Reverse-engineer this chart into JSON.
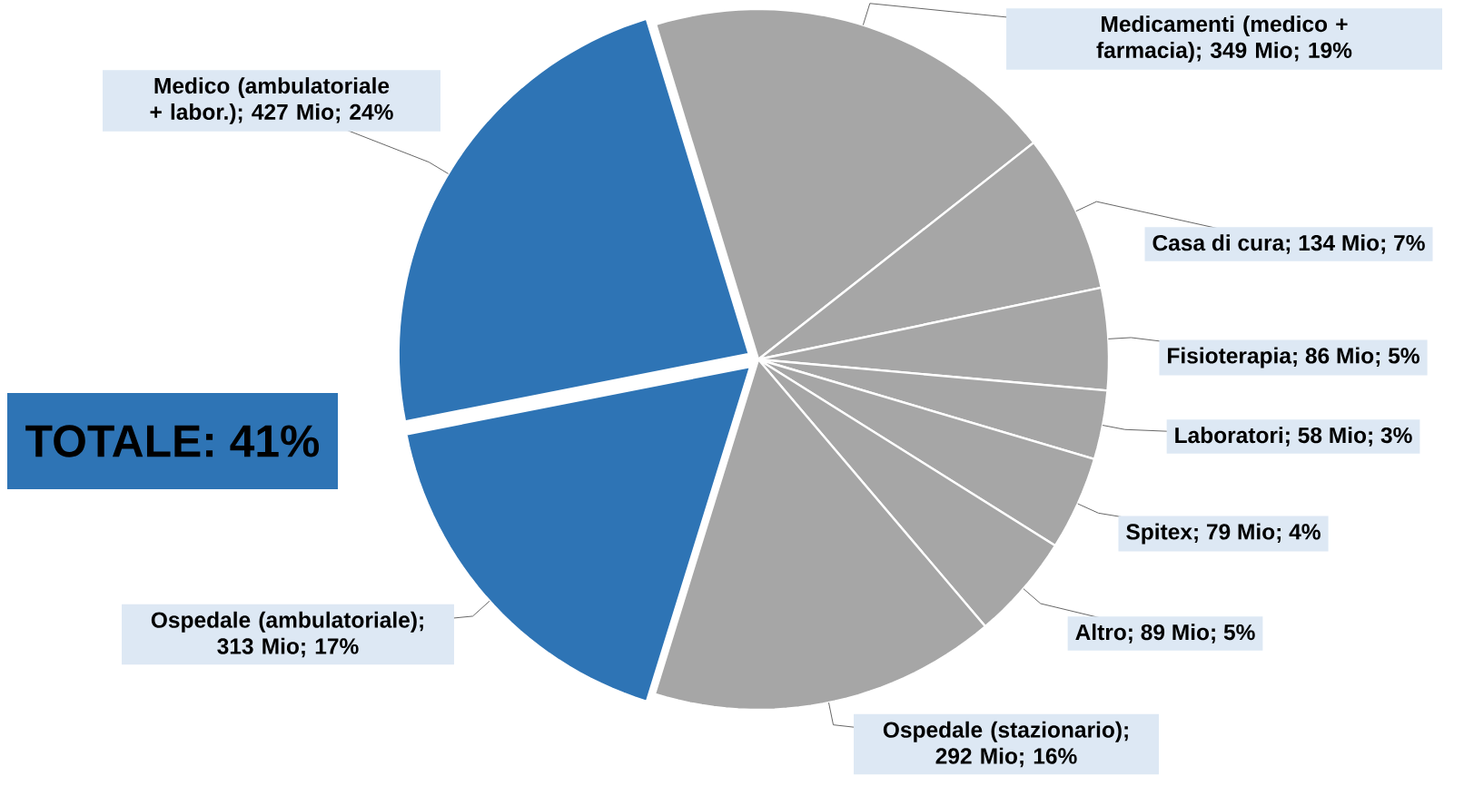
{
  "chart_data": {
    "type": "pie",
    "categories": [
      "Medicamenti (medico + farmacia)",
      "Casa di cura",
      "Fisioterapia",
      "Laboratori",
      "Spitex",
      "Altro",
      "Ospedale (stazionario)",
      "Ospedale (ambulatoriale)",
      "Medico (ambulatoriale + labor.)"
    ],
    "values": [
      349,
      134,
      86,
      58,
      79,
      89,
      292,
      313,
      427
    ],
    "colors": [
      "#a6a6a6",
      "#a6a6a6",
      "#a6a6a6",
      "#a6a6a6",
      "#a6a6a6",
      "#a6a6a6",
      "#a6a6a6",
      "#2e74b5",
      "#2e74b5"
    ],
    "value_labels": [
      "; 349 Mio; 19%",
      "; 134 Mio; 7%",
      "; 86 Mio; 5%",
      "; 58 Mio; 3%",
      "; 79 Mio; 4%",
      "; 89 Mio; 5%",
      "; 292 Mio; 16%",
      "; 313 Mio; 17%",
      "; 427 Mio; 24%"
    ],
    "annotations": [
      "TOTALE: 41%"
    ]
  }
}
